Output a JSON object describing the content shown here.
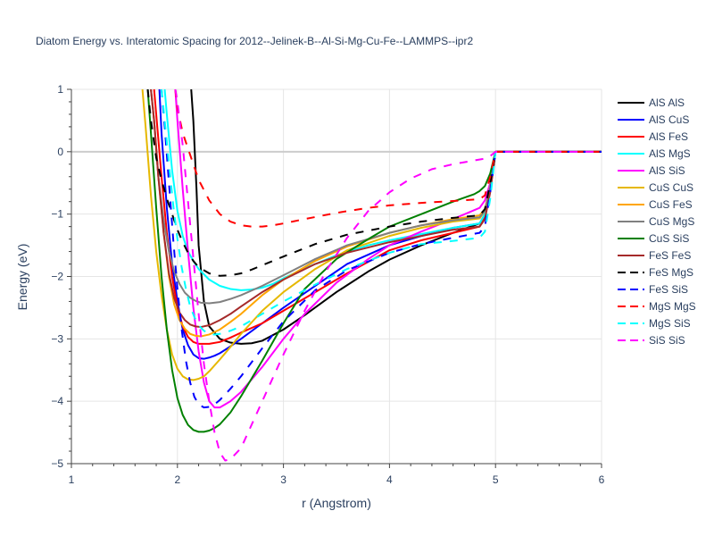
{
  "chart_data": {
    "type": "line",
    "title": "Diatom Energy vs. Interatomic Spacing for 2012--Jelinek-B--Al-Si-Mg-Cu-Fe--LAMMPS--ipr2",
    "xlabel": "r (Angstrom)",
    "ylabel": "Energy (eV)",
    "xlim": [
      1,
      6
    ],
    "ylim": [
      -5,
      1
    ],
    "xticks": [
      1,
      2,
      3,
      4,
      5,
      6
    ],
    "yticks": [
      -5,
      -4,
      -3,
      -2,
      -1,
      0,
      1
    ],
    "grid": true,
    "legend_position": "right",
    "series": [
      {
        "name": "AlS AlS",
        "color": "#000000",
        "dash": "solid",
        "x": [
          2.13,
          2.15,
          2.18,
          2.2,
          2.25,
          2.3,
          2.4,
          2.5,
          2.6,
          2.7,
          2.8,
          3.0,
          3.2,
          3.5,
          3.8,
          4.0,
          4.3,
          4.6,
          4.85,
          4.9,
          4.95,
          5.0,
          6.0
        ],
        "y": [
          1,
          0.5,
          -0.6,
          -1.5,
          -2.4,
          -2.8,
          -3.0,
          -3.06,
          -3.08,
          -3.07,
          -3.03,
          -2.85,
          -2.62,
          -2.25,
          -1.92,
          -1.73,
          -1.5,
          -1.3,
          -1.15,
          -1.05,
          -0.6,
          0,
          0
        ]
      },
      {
        "name": "AlS CuS",
        "color": "#0000ff",
        "dash": "solid",
        "x": [
          1.83,
          1.85,
          1.9,
          1.95,
          2.0,
          2.05,
          2.1,
          2.15,
          2.2,
          2.25,
          2.3,
          2.35,
          2.4,
          2.5,
          2.6,
          2.8,
          3.0,
          3.3,
          3.6,
          4.0,
          4.3,
          4.6,
          4.85,
          4.9,
          4.95,
          5.0,
          6.0
        ],
        "y": [
          1,
          0.3,
          -0.9,
          -1.8,
          -2.4,
          -2.85,
          -3.1,
          -3.25,
          -3.31,
          -3.32,
          -3.3,
          -3.27,
          -3.23,
          -3.12,
          -3.0,
          -2.75,
          -2.5,
          -2.15,
          -1.8,
          -1.5,
          -1.35,
          -1.22,
          -1.15,
          -1.0,
          -0.6,
          0,
          0
        ]
      },
      {
        "name": "AlS FeS",
        "color": "#ff0000",
        "dash": "solid",
        "x": [
          1.78,
          1.8,
          1.85,
          1.9,
          1.95,
          2.0,
          2.05,
          2.1,
          2.15,
          2.2,
          2.3,
          2.4,
          2.5,
          2.6,
          2.8,
          3.0,
          3.3,
          3.6,
          4.0,
          4.3,
          4.6,
          4.85,
          4.9,
          4.95,
          5.0,
          6.0
        ],
        "y": [
          1,
          0.6,
          -0.4,
          -1.3,
          -2.0,
          -2.5,
          -2.8,
          -2.97,
          -3.05,
          -3.08,
          -3.08,
          -3.05,
          -2.98,
          -2.9,
          -2.75,
          -2.55,
          -2.25,
          -1.95,
          -1.58,
          -1.42,
          -1.3,
          -1.2,
          -1.05,
          -0.6,
          0,
          0
        ]
      },
      {
        "name": "AlS MgS",
        "color": "#00ffff",
        "dash": "solid",
        "x": [
          1.88,
          1.9,
          1.95,
          2.0,
          2.05,
          2.1,
          2.15,
          2.2,
          2.3,
          2.4,
          2.5,
          2.6,
          2.7,
          2.8,
          2.9,
          3.0,
          3.2,
          3.5,
          3.8,
          4.0,
          4.3,
          4.6,
          4.85,
          4.9,
          4.95,
          5.0,
          6.0
        ],
        "y": [
          1,
          0.6,
          -0.3,
          -0.95,
          -1.35,
          -1.6,
          -1.75,
          -1.88,
          -2.05,
          -2.15,
          -2.2,
          -2.22,
          -2.21,
          -2.18,
          -2.12,
          -2.03,
          -1.87,
          -1.66,
          -1.5,
          -1.42,
          -1.32,
          -1.22,
          -1.15,
          -1.0,
          -0.6,
          0,
          0
        ]
      },
      {
        "name": "AlS SiS",
        "color": "#ff00ff",
        "dash": "solid",
        "x": [
          1.98,
          2.0,
          2.05,
          2.1,
          2.15,
          2.2,
          2.25,
          2.3,
          2.35,
          2.4,
          2.5,
          2.6,
          2.8,
          3.0,
          3.2,
          3.5,
          3.8,
          4.0,
          4.3,
          4.6,
          4.85,
          4.9,
          4.95,
          5.0,
          6.0
        ],
        "y": [
          1,
          0.5,
          -0.6,
          -1.6,
          -2.5,
          -3.2,
          -3.7,
          -4.0,
          -4.1,
          -4.1,
          -4.0,
          -3.85,
          -3.45,
          -3.0,
          -2.6,
          -2.1,
          -1.72,
          -1.5,
          -1.28,
          -1.08,
          -0.9,
          -0.78,
          -0.5,
          0,
          0
        ]
      },
      {
        "name": "CuS CuS",
        "color": "#e6b800",
        "dash": "solid",
        "x": [
          1.67,
          1.7,
          1.75,
          1.8,
          1.85,
          1.9,
          1.95,
          2.0,
          2.05,
          2.1,
          2.15,
          2.2,
          2.25,
          2.3,
          2.4,
          2.5,
          2.6,
          2.8,
          3.0,
          3.3,
          3.6,
          4.0,
          4.3,
          4.6,
          4.85,
          4.9,
          4.95,
          5.0,
          6.0
        ],
        "y": [
          1,
          0.4,
          -0.7,
          -1.6,
          -2.3,
          -2.85,
          -3.25,
          -3.48,
          -3.6,
          -3.65,
          -3.66,
          -3.64,
          -3.6,
          -3.52,
          -3.33,
          -3.13,
          -2.92,
          -2.55,
          -2.25,
          -1.88,
          -1.58,
          -1.35,
          -1.22,
          -1.12,
          -1.07,
          -0.95,
          -0.55,
          0,
          0
        ]
      },
      {
        "name": "CuS FeS",
        "color": "#ffa500",
        "dash": "solid",
        "x": [
          1.75,
          1.78,
          1.82,
          1.87,
          1.92,
          1.97,
          2.02,
          2.07,
          2.12,
          2.17,
          2.22,
          2.3,
          2.4,
          2.5,
          2.6,
          2.8,
          3.0,
          3.3,
          3.6,
          4.0,
          4.3,
          4.6,
          4.85,
          4.9,
          4.95,
          5.0,
          6.0
        ],
        "y": [
          1,
          0.5,
          -0.4,
          -1.3,
          -2.0,
          -2.45,
          -2.7,
          -2.84,
          -2.92,
          -2.95,
          -2.96,
          -2.93,
          -2.85,
          -2.73,
          -2.6,
          -2.3,
          -2.05,
          -1.75,
          -1.52,
          -1.3,
          -1.18,
          -1.08,
          -1.02,
          -0.92,
          -0.55,
          0,
          0
        ]
      },
      {
        "name": "CuS MgS",
        "color": "#808080",
        "dash": "solid",
        "x": [
          1.75,
          1.78,
          1.82,
          1.87,
          1.92,
          1.97,
          2.02,
          2.07,
          2.12,
          2.17,
          2.22,
          2.3,
          2.4,
          2.5,
          2.6,
          2.8,
          3.0,
          3.3,
          3.6,
          4.0,
          4.3,
          4.6,
          4.85,
          4.9,
          4.95,
          5.0,
          6.0
        ],
        "y": [
          1,
          0.5,
          -0.4,
          -1.1,
          -1.6,
          -1.92,
          -2.12,
          -2.26,
          -2.34,
          -2.39,
          -2.42,
          -2.43,
          -2.41,
          -2.36,
          -2.3,
          -2.15,
          -1.98,
          -1.72,
          -1.5,
          -1.3,
          -1.18,
          -1.1,
          -1.05,
          -0.95,
          -0.55,
          0,
          0
        ]
      },
      {
        "name": "CuS SiS",
        "color": "#008000",
        "dash": "solid",
        "x": [
          1.72,
          1.75,
          1.8,
          1.85,
          1.9,
          1.95,
          2.0,
          2.05,
          2.1,
          2.15,
          2.2,
          2.25,
          2.3,
          2.35,
          2.4,
          2.5,
          2.6,
          2.8,
          3.0,
          3.2,
          3.5,
          3.8,
          4.0,
          4.3,
          4.6,
          4.8,
          4.85,
          4.9,
          4.95,
          5.0,
          6.0
        ],
        "y": [
          1,
          0.3,
          -0.9,
          -2.0,
          -2.85,
          -3.5,
          -3.95,
          -4.22,
          -4.38,
          -4.46,
          -4.49,
          -4.49,
          -4.47,
          -4.43,
          -4.37,
          -4.18,
          -3.92,
          -3.35,
          -2.75,
          -2.2,
          -1.72,
          -1.4,
          -1.2,
          -1.0,
          -0.8,
          -0.68,
          -0.63,
          -0.55,
          -0.35,
          0,
          0
        ]
      },
      {
        "name": "FeS FeS",
        "color": "#a52a2a",
        "dash": "solid",
        "x": [
          1.75,
          1.78,
          1.82,
          1.87,
          1.92,
          1.97,
          2.02,
          2.07,
          2.12,
          2.17,
          2.22,
          2.3,
          2.4,
          2.5,
          2.6,
          2.8,
          3.0,
          3.3,
          3.6,
          4.0,
          4.3,
          4.6,
          4.85,
          4.9,
          4.95,
          5.0,
          6.0
        ],
        "y": [
          1,
          0.5,
          -0.4,
          -1.3,
          -1.95,
          -2.35,
          -2.58,
          -2.7,
          -2.77,
          -2.8,
          -2.81,
          -2.78,
          -2.7,
          -2.6,
          -2.48,
          -2.25,
          -2.05,
          -1.8,
          -1.62,
          -1.45,
          -1.35,
          -1.25,
          -1.2,
          -1.08,
          -0.65,
          0,
          0
        ]
      },
      {
        "name": "FeS MgS",
        "color": "#000000",
        "dash": "dash",
        "x": [
          1.72,
          1.75,
          1.8,
          1.85,
          1.9,
          1.95,
          2.0,
          2.05,
          2.1,
          2.15,
          2.2,
          2.3,
          2.4,
          2.5,
          2.6,
          2.7,
          2.8,
          3.0,
          3.3,
          3.6,
          4.0,
          4.3,
          4.6,
          4.85,
          4.9,
          4.95,
          5.0,
          6.0
        ],
        "y": [
          1,
          0.5,
          -0.1,
          -0.45,
          -0.75,
          -1.0,
          -1.25,
          -1.45,
          -1.62,
          -1.75,
          -1.85,
          -1.95,
          -1.99,
          -1.98,
          -1.95,
          -1.89,
          -1.82,
          -1.68,
          -1.48,
          -1.33,
          -1.2,
          -1.12,
          -1.06,
          -1.02,
          -0.92,
          -0.5,
          0,
          0
        ]
      },
      {
        "name": "FeS SiS",
        "color": "#0000ff",
        "dash": "dash",
        "x": [
          1.85,
          1.88,
          1.92,
          1.96,
          2.0,
          2.04,
          2.08,
          2.12,
          2.16,
          2.2,
          2.25,
          2.3,
          2.35,
          2.4,
          2.5,
          2.6,
          2.8,
          3.0,
          3.3,
          3.6,
          4.0,
          4.3,
          4.6,
          4.85,
          4.9,
          4.95,
          5.0,
          6.0
        ],
        "y": [
          1,
          0.4,
          -0.5,
          -1.4,
          -2.2,
          -2.85,
          -3.35,
          -3.7,
          -3.93,
          -4.05,
          -4.1,
          -4.09,
          -4.05,
          -3.98,
          -3.8,
          -3.6,
          -3.15,
          -2.72,
          -2.22,
          -1.9,
          -1.62,
          -1.48,
          -1.38,
          -1.3,
          -1.2,
          -0.65,
          0,
          0
        ]
      },
      {
        "name": "MgS MgS",
        "color": "#ff0000",
        "dash": "dash",
        "x": [
          1.98,
          2.0,
          2.05,
          2.1,
          2.15,
          2.2,
          2.3,
          2.4,
          2.5,
          2.6,
          2.7,
          2.8,
          2.9,
          3.0,
          3.2,
          3.5,
          3.8,
          4.0,
          4.3,
          4.6,
          4.85,
          4.9,
          4.95,
          5.0,
          6.0
        ],
        "y": [
          1,
          0.7,
          0.3,
          0.05,
          -0.2,
          -0.45,
          -0.78,
          -1.0,
          -1.12,
          -1.18,
          -1.2,
          -1.2,
          -1.18,
          -1.15,
          -1.08,
          -0.98,
          -0.9,
          -0.86,
          -0.82,
          -0.79,
          -0.76,
          -0.7,
          -0.4,
          0,
          0
        ]
      },
      {
        "name": "MgS SiS",
        "color": "#00ffff",
        "dash": "dash",
        "x": [
          1.85,
          1.88,
          1.92,
          1.96,
          2.0,
          2.04,
          2.08,
          2.12,
          2.16,
          2.2,
          2.25,
          2.3,
          2.35,
          2.4,
          2.5,
          2.6,
          2.8,
          3.0,
          3.3,
          3.6,
          4.0,
          4.3,
          4.6,
          4.85,
          4.9,
          4.95,
          5.0,
          6.0
        ],
        "y": [
          1,
          0.5,
          -0.2,
          -0.85,
          -1.4,
          -1.85,
          -2.2,
          -2.48,
          -2.65,
          -2.78,
          -2.87,
          -2.92,
          -2.93,
          -2.92,
          -2.87,
          -2.8,
          -2.6,
          -2.4,
          -2.13,
          -1.88,
          -1.62,
          -1.48,
          -1.43,
          -1.38,
          -1.28,
          -0.75,
          0,
          0
        ]
      },
      {
        "name": "SiS SiS",
        "color": "#ff00ff",
        "dash": "dash",
        "x": [
          1.98,
          2.0,
          2.05,
          2.1,
          2.15,
          2.2,
          2.25,
          2.3,
          2.35,
          2.4,
          2.45,
          2.5,
          2.6,
          2.8,
          3.0,
          3.2,
          3.4,
          3.6,
          3.8,
          4.0,
          4.2,
          4.4,
          4.6,
          4.8,
          4.9,
          4.95,
          5.0,
          6.0
        ],
        "y": [
          1,
          0.8,
          0.1,
          -0.8,
          -1.7,
          -2.6,
          -3.4,
          -4.0,
          -4.5,
          -4.82,
          -4.95,
          -4.93,
          -4.75,
          -4.0,
          -3.25,
          -2.55,
          -1.92,
          -1.38,
          -0.95,
          -0.65,
          -0.43,
          -0.28,
          -0.2,
          -0.14,
          -0.11,
          -0.07,
          0,
          0
        ]
      }
    ]
  }
}
